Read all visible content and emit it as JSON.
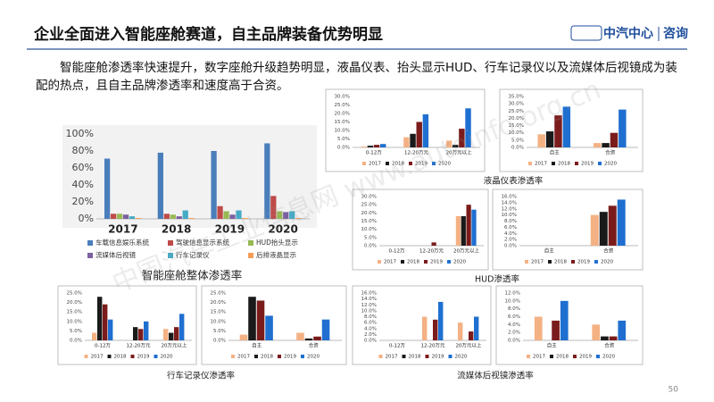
{
  "header": {
    "title": "企业全面进入智能座舱赛道，自主品牌装备优势明显",
    "logo": "中汽中心",
    "logo_sub": "咨询"
  },
  "paragraph": "智能座舱渗透率快速提升，数字座舱升级趋势明显，液晶仪表、抬头显示HUD、行车记录仪以及流媒体后视镜成为装配的热点，且自主品牌渗透率和速度高于合资。",
  "watermark": "中国汽车工业信息网 www.autoinfo.org.cn",
  "page_number": "50",
  "chart_data": [
    {
      "type": "bar",
      "title": "智能座舱整体渗透率",
      "categories": [
        "2017",
        "2018",
        "2019",
        "2020"
      ],
      "series": [
        {
          "name": "车载信息娱乐系统",
          "color": "#4a7ebb",
          "values": [
            71,
            78,
            80,
            89
          ]
        },
        {
          "name": "驾驶信息显示系统",
          "color": "#be4b48",
          "values": [
            6,
            6,
            15,
            27
          ]
        },
        {
          "name": "HUD抬头显示",
          "color": "#98b954",
          "values": [
            6,
            5,
            9,
            9
          ]
        },
        {
          "name": "流媒体后视镜",
          "color": "#7d60a0",
          "values": [
            5,
            3,
            5,
            8
          ]
        },
        {
          "name": "行车记录仪",
          "color": "#46aac5",
          "values": [
            3,
            10,
            10,
            9
          ]
        },
        {
          "name": "后排液晶显示",
          "color": "#f59d56",
          "values": [
            1,
            1,
            1,
            1
          ]
        }
      ],
      "ylim": [
        0,
        100
      ],
      "yticks": [
        {
          "value": 0,
          "label": "0%"
        },
        {
          "value": 20,
          "label": "20%"
        },
        {
          "value": 40,
          "label": "40%"
        },
        {
          "value": 60,
          "label": "60%"
        },
        {
          "value": 80,
          "label": "80%"
        },
        {
          "value": 100,
          "label": "100%"
        }
      ],
      "grid": false
    },
    {
      "type": "bar",
      "title": "液晶仪表渗透率",
      "categories": [
        "0-12万",
        "12-20万元",
        "20万元以上"
      ],
      "series": [
        {
          "name": "2017",
          "color": "#f4b183",
          "values": [
            0.5,
            6,
            4
          ]
        },
        {
          "name": "2018",
          "color": "#1a1a1a",
          "values": [
            1,
            8,
            1.5
          ]
        },
        {
          "name": "2019",
          "color": "#7b1c1c",
          "values": [
            1.5,
            15,
            11
          ]
        },
        {
          "name": "2020",
          "color": "#1f6fd0",
          "values": [
            2,
            19.5,
            23
          ]
        }
      ],
      "ylim": [
        0,
        30
      ],
      "yticks": [
        {
          "value": 0,
          "label": "0.0%"
        },
        {
          "value": 5,
          "label": "5.0%"
        },
        {
          "value": 10,
          "label": "10.0%"
        },
        {
          "value": 15,
          "label": "15.0%"
        },
        {
          "value": 20,
          "label": "20.0%"
        },
        {
          "value": 25,
          "label": "25.0%"
        },
        {
          "value": 30,
          "label": "30.0%"
        }
      ]
    },
    {
      "type": "bar",
      "categories": [
        "自主",
        "合资"
      ],
      "series": [
        {
          "name": "2017",
          "color": "#f4b183",
          "values": [
            9,
            3
          ]
        },
        {
          "name": "2018",
          "color": "#1a1a1a",
          "values": [
            11,
            3
          ]
        },
        {
          "name": "2019",
          "color": "#7b1c1c",
          "values": [
            22,
            10
          ]
        },
        {
          "name": "2020",
          "color": "#1f6fd0",
          "values": [
            28,
            26
          ]
        }
      ],
      "ylim": [
        0,
        35
      ],
      "yticks": [
        {
          "value": 0,
          "label": "0.0%"
        },
        {
          "value": 5,
          "label": "5.0%"
        },
        {
          "value": 10,
          "label": "10.0%"
        },
        {
          "value": 15,
          "label": "15.0%"
        },
        {
          "value": 20,
          "label": "20.0%"
        },
        {
          "value": 25,
          "label": "25.0%"
        },
        {
          "value": 30,
          "label": "30.0%"
        },
        {
          "value": 35,
          "label": "35.0%"
        }
      ]
    },
    {
      "type": "bar",
      "title": "HUD渗透率",
      "categories": [
        "0-12万",
        "12-20万元",
        "20万元以上"
      ],
      "series": [
        {
          "name": "2017",
          "color": "#f4b183",
          "values": [
            0,
            0,
            18
          ]
        },
        {
          "name": "2018",
          "color": "#1a1a1a",
          "values": [
            0,
            0,
            18
          ]
        },
        {
          "name": "2019",
          "color": "#7b1c1c",
          "values": [
            0,
            2,
            25
          ]
        },
        {
          "name": "2020",
          "color": "#1f6fd0",
          "values": [
            0,
            0,
            22
          ]
        }
      ],
      "ylim": [
        0,
        30
      ],
      "yticks": [
        {
          "value": 0,
          "label": "0.0%"
        },
        {
          "value": 5,
          "label": "5.0%"
        },
        {
          "value": 10,
          "label": "10.0%"
        },
        {
          "value": 15,
          "label": "15.0%"
        },
        {
          "value": 20,
          "label": "20.0%"
        },
        {
          "value": 25,
          "label": "25.0%"
        },
        {
          "value": 30,
          "label": "30.0%"
        }
      ]
    },
    {
      "type": "bar",
      "categories": [
        "自主",
        "合资"
      ],
      "series": [
        {
          "name": "2017",
          "color": "#f4b183",
          "values": [
            0,
            10
          ]
        },
        {
          "name": "2018",
          "color": "#1a1a1a",
          "values": [
            0,
            11
          ]
        },
        {
          "name": "2019",
          "color": "#7b1c1c",
          "values": [
            0,
            13
          ]
        },
        {
          "name": "2020",
          "color": "#1f6fd0",
          "values": [
            0,
            15
          ]
        }
      ],
      "ylim": [
        0,
        16
      ],
      "yticks": [
        {
          "value": 0,
          "label": "0.0%"
        },
        {
          "value": 2,
          "label": "2.0%"
        },
        {
          "value": 4,
          "label": "4.0%"
        },
        {
          "value": 6,
          "label": "6.0%"
        },
        {
          "value": 8,
          "label": "8.0%"
        },
        {
          "value": 10,
          "label": "10.0%"
        },
        {
          "value": 12,
          "label": "12.0%"
        },
        {
          "value": 14,
          "label": "14.0%"
        },
        {
          "value": 16,
          "label": "16.0%"
        }
      ]
    },
    {
      "type": "bar",
      "title": "行车记录仪渗透率",
      "categories": [
        "0-12万",
        "12-20万元",
        "20万元以上"
      ],
      "series": [
        {
          "name": "2017",
          "color": "#f4b183",
          "values": [
            4,
            0,
            6
          ]
        },
        {
          "name": "2018",
          "color": "#1a1a1a",
          "values": [
            23,
            7,
            4
          ]
        },
        {
          "name": "2019",
          "color": "#7b1c1c",
          "values": [
            19,
            6,
            7
          ]
        },
        {
          "name": "2020",
          "color": "#1f6fd0",
          "values": [
            11,
            10,
            14
          ]
        }
      ],
      "ylim": [
        0,
        25
      ],
      "yticks": [
        {
          "value": 0,
          "label": "0.0%"
        },
        {
          "value": 5,
          "label": "5.0%"
        },
        {
          "value": 10,
          "label": "10.0%"
        },
        {
          "value": 15,
          "label": "15.0%"
        },
        {
          "value": 20,
          "label": "20.0%"
        },
        {
          "value": 25,
          "label": "25.0%"
        }
      ]
    },
    {
      "type": "bar",
      "categories": [
        "自主",
        "合资"
      ],
      "series": [
        {
          "name": "2017",
          "color": "#f4b183",
          "values": [
            3,
            4
          ]
        },
        {
          "name": "2018",
          "color": "#1a1a1a",
          "values": [
            23,
            1
          ]
        },
        {
          "name": "2019",
          "color": "#7b1c1c",
          "values": [
            21,
            2
          ]
        },
        {
          "name": "2020",
          "color": "#1f6fd0",
          "values": [
            13,
            11
          ]
        }
      ],
      "ylim": [
        0,
        25
      ],
      "yticks": [
        {
          "value": 0,
          "label": "0.0%"
        },
        {
          "value": 5,
          "label": "5.0%"
        },
        {
          "value": 10,
          "label": "10.0%"
        },
        {
          "value": 15,
          "label": "15.0%"
        },
        {
          "value": 20,
          "label": "20.0%"
        },
        {
          "value": 25,
          "label": "25.0%"
        }
      ]
    },
    {
      "type": "bar",
      "title": "流媒体后视镜渗透率",
      "categories": [
        "0-12万",
        "12-20万元",
        "20万元以上"
      ],
      "series": [
        {
          "name": "2017",
          "color": "#f4b183",
          "values": [
            0,
            8,
            6
          ]
        },
        {
          "name": "2018",
          "color": "#1a1a1a",
          "values": [
            0,
            0,
            0
          ]
        },
        {
          "name": "2019",
          "color": "#7b1c1c",
          "values": [
            0,
            7,
            3
          ]
        },
        {
          "name": "2020",
          "color": "#1f6fd0",
          "values": [
            0,
            13,
            8
          ]
        }
      ],
      "ylim": [
        0,
        16
      ],
      "yticks": [
        {
          "value": 0,
          "label": "0.0%"
        },
        {
          "value": 2,
          "label": "2.0%"
        },
        {
          "value": 4,
          "label": "4.0%"
        },
        {
          "value": 6,
          "label": "6.0%"
        },
        {
          "value": 8,
          "label": "8.0%"
        },
        {
          "value": 10,
          "label": "10.0%"
        },
        {
          "value": 12,
          "label": "12.0%"
        },
        {
          "value": 14,
          "label": "14.0%"
        },
        {
          "value": 16,
          "label": "16.0%"
        }
      ]
    },
    {
      "type": "bar",
      "categories": [
        "自主",
        "合资"
      ],
      "series": [
        {
          "name": "2017",
          "color": "#f4b183",
          "values": [
            6,
            4
          ]
        },
        {
          "name": "2018",
          "color": "#1a1a1a",
          "values": [
            0,
            1
          ]
        },
        {
          "name": "2019",
          "color": "#7b1c1c",
          "values": [
            5,
            1
          ]
        },
        {
          "name": "2020",
          "color": "#1f6fd0",
          "values": [
            10,
            5
          ]
        }
      ],
      "ylim": [
        0,
        12
      ],
      "yticks": [
        {
          "value": 0,
          "label": "0.0%"
        },
        {
          "value": 2,
          "label": "2.0%"
        },
        {
          "value": 4,
          "label": "4.0%"
        },
        {
          "value": 6,
          "label": "6.0%"
        },
        {
          "value": 8,
          "label": "8.0%"
        },
        {
          "value": 10,
          "label": "10.0%"
        },
        {
          "value": 12,
          "label": "12.0%"
        }
      ]
    }
  ]
}
